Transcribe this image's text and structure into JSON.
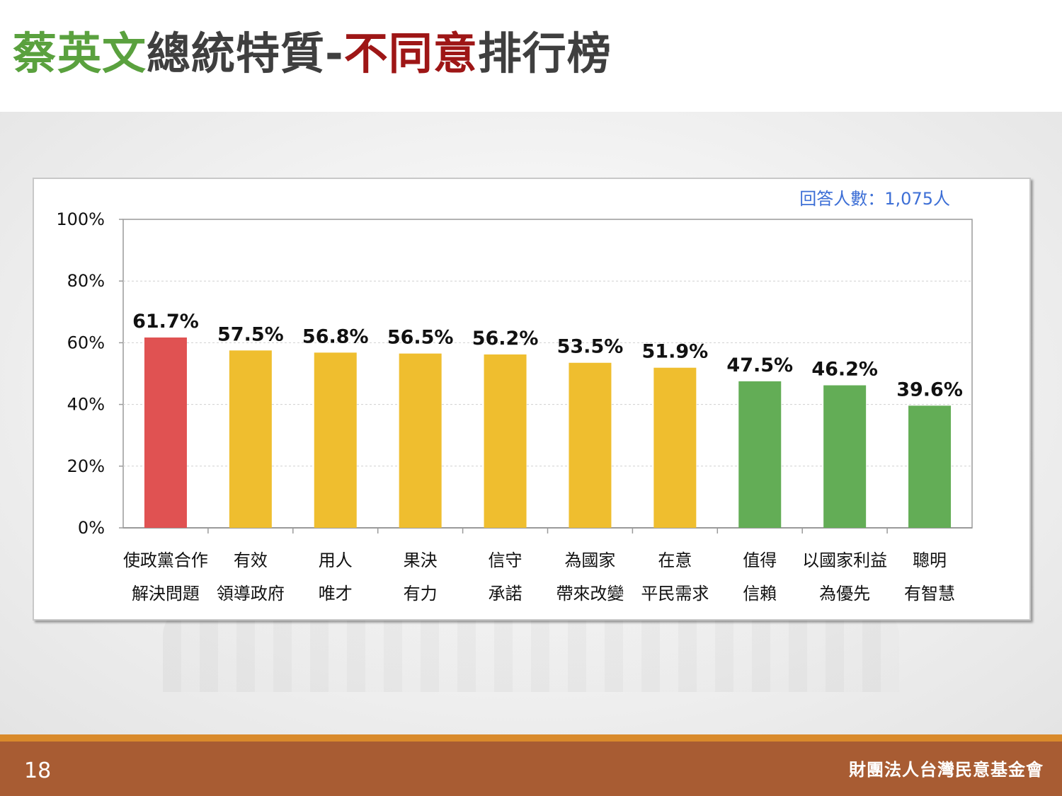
{
  "header": {
    "title_part1": "蔡英文",
    "title_part2": "總統特質-",
    "title_part3": "不同意",
    "title_part4": "排行榜"
  },
  "footer": {
    "page_number": "18",
    "organization": "財團法人台灣民意基金會"
  },
  "chart_data": {
    "type": "bar",
    "note": "回答人數：1,075人",
    "categories": [
      [
        "使政黨合作",
        "解決問題"
      ],
      [
        "有效",
        "領導政府"
      ],
      [
        "用人",
        "唯才"
      ],
      [
        "果決",
        "有力"
      ],
      [
        "信守",
        "承諾"
      ],
      [
        "為國家",
        "帶來改變"
      ],
      [
        "在意",
        "平民需求"
      ],
      [
        "值得",
        "信賴"
      ],
      [
        "以國家利益",
        "為優先"
      ],
      [
        "聰明",
        "有智慧"
      ]
    ],
    "values": [
      61.7,
      57.5,
      56.8,
      56.5,
      56.2,
      53.5,
      51.9,
      47.5,
      46.2,
      39.6
    ],
    "data_labels": [
      "61.7%",
      "57.5%",
      "56.8%",
      "56.5%",
      "56.2%",
      "53.5%",
      "51.9%",
      "47.5%",
      "46.2%",
      "39.6%"
    ],
    "bar_colors": [
      "#e05252",
      "#efbe2f",
      "#efbe2f",
      "#efbe2f",
      "#efbe2f",
      "#efbe2f",
      "#efbe2f",
      "#63ad56",
      "#63ad56",
      "#63ad56"
    ],
    "ylim": [
      0,
      100
    ],
    "yticks": [
      0,
      20,
      40,
      60,
      80,
      100
    ],
    "ytick_labels": [
      "0%",
      "20%",
      "40%",
      "60%",
      "80%",
      "100%"
    ],
    "grid": true
  }
}
